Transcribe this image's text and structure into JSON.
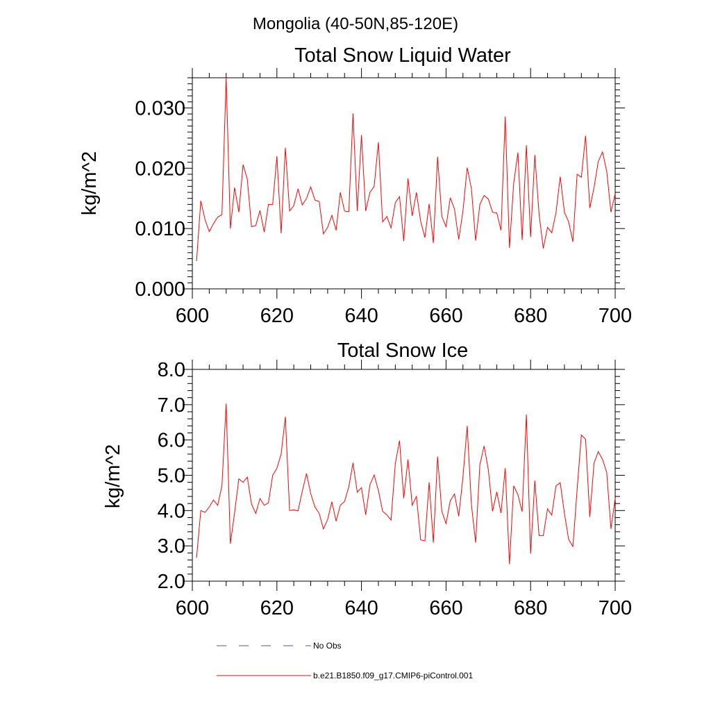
{
  "suptitle": "Mongolia (40-50N,85-120E)",
  "colors": {
    "model": "#ff0000",
    "obs": "#4a5a9a",
    "axis": "#000000"
  },
  "chart_data": [
    {
      "type": "line",
      "title": "Total Snow Liquid Water",
      "xlabel": "",
      "ylabel": "kg/m^2",
      "xlim": [
        600,
        700
      ],
      "ylim": [
        0,
        0.035
      ],
      "xticks": [
        "600",
        "620",
        "640",
        "660",
        "680",
        "700"
      ],
      "yticks": [
        "0.000",
        "0.010",
        "0.020",
        "0.030"
      ],
      "x": [
        601,
        602,
        603,
        604,
        605,
        606,
        607,
        608,
        609,
        610,
        611,
        612,
        613,
        614,
        615,
        616,
        617,
        618,
        619,
        620,
        621,
        622,
        623,
        624,
        625,
        626,
        627,
        628,
        629,
        630,
        631,
        632,
        633,
        634,
        635,
        636,
        637,
        638,
        639,
        640,
        641,
        642,
        643,
        644,
        645,
        646,
        647,
        648,
        649,
        650,
        651,
        652,
        653,
        654,
        655,
        656,
        657,
        658,
        659,
        660,
        661,
        662,
        663,
        664,
        665,
        666,
        667,
        668,
        669,
        670,
        671,
        672,
        673,
        674,
        675,
        676,
        677,
        678,
        679,
        680,
        681,
        682,
        683,
        684,
        685,
        686,
        687,
        688,
        689,
        690,
        691,
        692,
        693,
        694,
        695,
        696,
        697,
        698,
        699,
        700
      ],
      "series": [
        {
          "name": "b.e21.B1850.f09_g17.CMIP6-piControl.001",
          "values": [
            0.0046,
            0.0146,
            0.0115,
            0.0095,
            0.0108,
            0.0119,
            0.0123,
            0.035,
            0.01,
            0.0168,
            0.0127,
            0.0206,
            0.0182,
            0.0103,
            0.0105,
            0.013,
            0.0094,
            0.014,
            0.014,
            0.022,
            0.0092,
            0.0234,
            0.0129,
            0.0138,
            0.0166,
            0.0139,
            0.015,
            0.0169,
            0.0147,
            0.0145,
            0.0091,
            0.0102,
            0.0122,
            0.0097,
            0.016,
            0.0129,
            0.0128,
            0.0291,
            0.0129,
            0.0255,
            0.0129,
            0.016,
            0.017,
            0.0243,
            0.0111,
            0.012,
            0.0101,
            0.0143,
            0.0153,
            0.0079,
            0.0183,
            0.0121,
            0.016,
            0.0112,
            0.0085,
            0.0141,
            0.0076,
            0.0219,
            0.012,
            0.0103,
            0.0151,
            0.0132,
            0.0082,
            0.0129,
            0.0201,
            0.0166,
            0.008,
            0.014,
            0.0155,
            0.0149,
            0.0127,
            0.0126,
            0.0097,
            0.0286,
            0.0068,
            0.0175,
            0.0226,
            0.0081,
            0.0238,
            0.0086,
            0.0222,
            0.0124,
            0.0067,
            0.0102,
            0.0093,
            0.0126,
            0.0186,
            0.0127,
            0.0111,
            0.0078,
            0.019,
            0.0185,
            0.0254,
            0.0134,
            0.0168,
            0.0211,
            0.0227,
            0.0195,
            0.0127,
            0.0158
          ]
        }
      ]
    },
    {
      "type": "line",
      "title": "Total Snow Ice",
      "xlabel": "",
      "ylabel": "kg/m^2",
      "xlim": [
        600,
        700
      ],
      "ylim": [
        2.0,
        8.0
      ],
      "xticks": [
        "600",
        "620",
        "640",
        "660",
        "680",
        "700"
      ],
      "yticks": [
        "2.0",
        "3.0",
        "4.0",
        "5.0",
        "6.0",
        "7.0",
        "8.0"
      ],
      "x": [
        601,
        602,
        603,
        604,
        605,
        606,
        607,
        608,
        609,
        610,
        611,
        612,
        613,
        614,
        615,
        616,
        617,
        618,
        619,
        620,
        621,
        622,
        623,
        624,
        625,
        626,
        627,
        628,
        629,
        630,
        631,
        632,
        633,
        634,
        635,
        636,
        637,
        638,
        639,
        640,
        641,
        642,
        643,
        644,
        645,
        646,
        647,
        648,
        649,
        650,
        651,
        652,
        653,
        654,
        655,
        656,
        657,
        658,
        659,
        660,
        661,
        662,
        663,
        664,
        665,
        666,
        667,
        668,
        669,
        670,
        671,
        672,
        673,
        674,
        675,
        676,
        677,
        678,
        679,
        680,
        681,
        682,
        683,
        684,
        685,
        686,
        687,
        688,
        689,
        690,
        691,
        692,
        693,
        694,
        695,
        696,
        697,
        698,
        699,
        700
      ],
      "series": [
        {
          "name": "b.e21.B1850.f09_g17.CMIP6-piControl.001",
          "values": [
            2.66,
            4.0,
            3.95,
            4.1,
            4.3,
            4.15,
            4.7,
            7.03,
            3.06,
            3.95,
            4.9,
            4.8,
            4.95,
            4.18,
            3.92,
            4.34,
            4.15,
            4.22,
            5.0,
            5.2,
            5.6,
            6.66,
            4.0,
            4.02,
            3.99,
            4.55,
            5.05,
            4.48,
            4.1,
            3.92,
            3.48,
            3.75,
            4.25,
            3.7,
            4.15,
            4.26,
            4.67,
            5.35,
            4.52,
            4.65,
            3.88,
            4.73,
            5.01,
            4.57,
            3.98,
            3.88,
            3.73,
            5.33,
            5.98,
            4.35,
            5.45,
            4.15,
            4.4,
            3.17,
            3.14,
            4.8,
            3.09,
            5.53,
            3.98,
            3.63,
            4.28,
            4.47,
            3.84,
            4.95,
            6.4,
            4.17,
            3.09,
            5.3,
            5.83,
            5.16,
            3.98,
            4.53,
            3.93,
            5.2,
            2.48,
            4.7,
            4.45,
            3.97,
            6.72,
            2.78,
            4.85,
            3.29,
            3.29,
            4.05,
            3.87,
            4.7,
            4.79,
            3.92,
            3.18,
            2.98,
            4.6,
            6.14,
            6.02,
            3.82,
            5.35,
            5.67,
            5.45,
            5.08,
            3.48,
            4.35
          ]
        }
      ]
    }
  ],
  "legend": {
    "placement": "bottom-left",
    "items": [
      {
        "label": "No Obs",
        "style": "dashed"
      },
      {
        "label": "b.e21.B1850.f09_g17.CMIP6-piControl.001",
        "style": "solid"
      }
    ]
  }
}
